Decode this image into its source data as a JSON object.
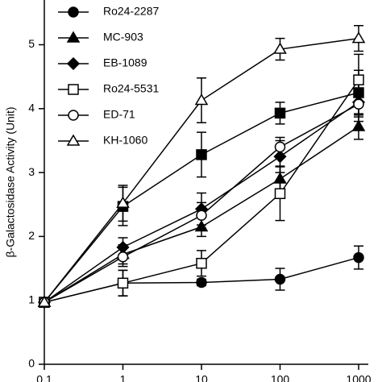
{
  "chart_data": {
    "type": "line",
    "y_label": "β-Galactosidase Activity (Unit)",
    "x": [
      0.1,
      1,
      10,
      100,
      1000
    ],
    "xlim": [
      0.1,
      1000
    ],
    "xticks": [
      0.1,
      1,
      10,
      100,
      1000
    ],
    "x_log": true,
    "ylim": [
      0,
      5.7
    ],
    "yticks": [
      0,
      1,
      2,
      3,
      4,
      5
    ],
    "series": [
      {
        "name": null,
        "color": "#000",
        "marker": "square",
        "filled": true,
        "values": [
          0.97,
          2.47,
          3.28,
          3.93,
          4.25
        ],
        "errors": [
          0,
          0.3,
          0.35,
          0.17,
          0.35
        ]
      },
      {
        "name": "Ro24-2287",
        "color": "#000",
        "marker": "circle",
        "filled": true,
        "values": [
          0.97,
          1.27,
          1.28,
          1.33,
          1.67
        ],
        "errors": [
          0,
          0.2,
          0.05,
          0.17,
          0.18
        ]
      },
      {
        "name": "MC-903",
        "color": "#000",
        "marker": "triangle",
        "filled": true,
        "values": [
          0.97,
          1.72,
          2.15,
          2.9,
          3.72
        ],
        "errors": [
          0,
          0.15,
          0.15,
          0.2,
          0.2
        ]
      },
      {
        "name": "EB-1089",
        "color": "#000",
        "marker": "diamond",
        "filled": true,
        "values": [
          0.97,
          1.83,
          2.43,
          3.25,
          4.1
        ],
        "errors": [
          0,
          0.15,
          0.25,
          0.25,
          0.3
        ]
      },
      {
        "name": "Ro24-5531",
        "color": "#000",
        "marker": "square",
        "filled": false,
        "values": [
          0.97,
          1.27,
          1.58,
          2.67,
          4.45
        ],
        "errors": [
          0,
          0.2,
          0.2,
          0.42,
          0.4
        ]
      },
      {
        "name": "ED-71",
        "color": "#000",
        "marker": "circle",
        "filled": false,
        "values": [
          0.97,
          1.68,
          2.33,
          3.4,
          4.07
        ],
        "errors": [
          0,
          0.15,
          0.2,
          0.15,
          0.2
        ]
      },
      {
        "name": "KH-1060",
        "color": "#000",
        "marker": "triangle",
        "filled": false,
        "values": [
          0.97,
          2.52,
          4.13,
          4.93,
          5.1
        ],
        "errors": [
          0,
          0.28,
          0.35,
          0.17,
          0.2
        ]
      }
    ]
  }
}
